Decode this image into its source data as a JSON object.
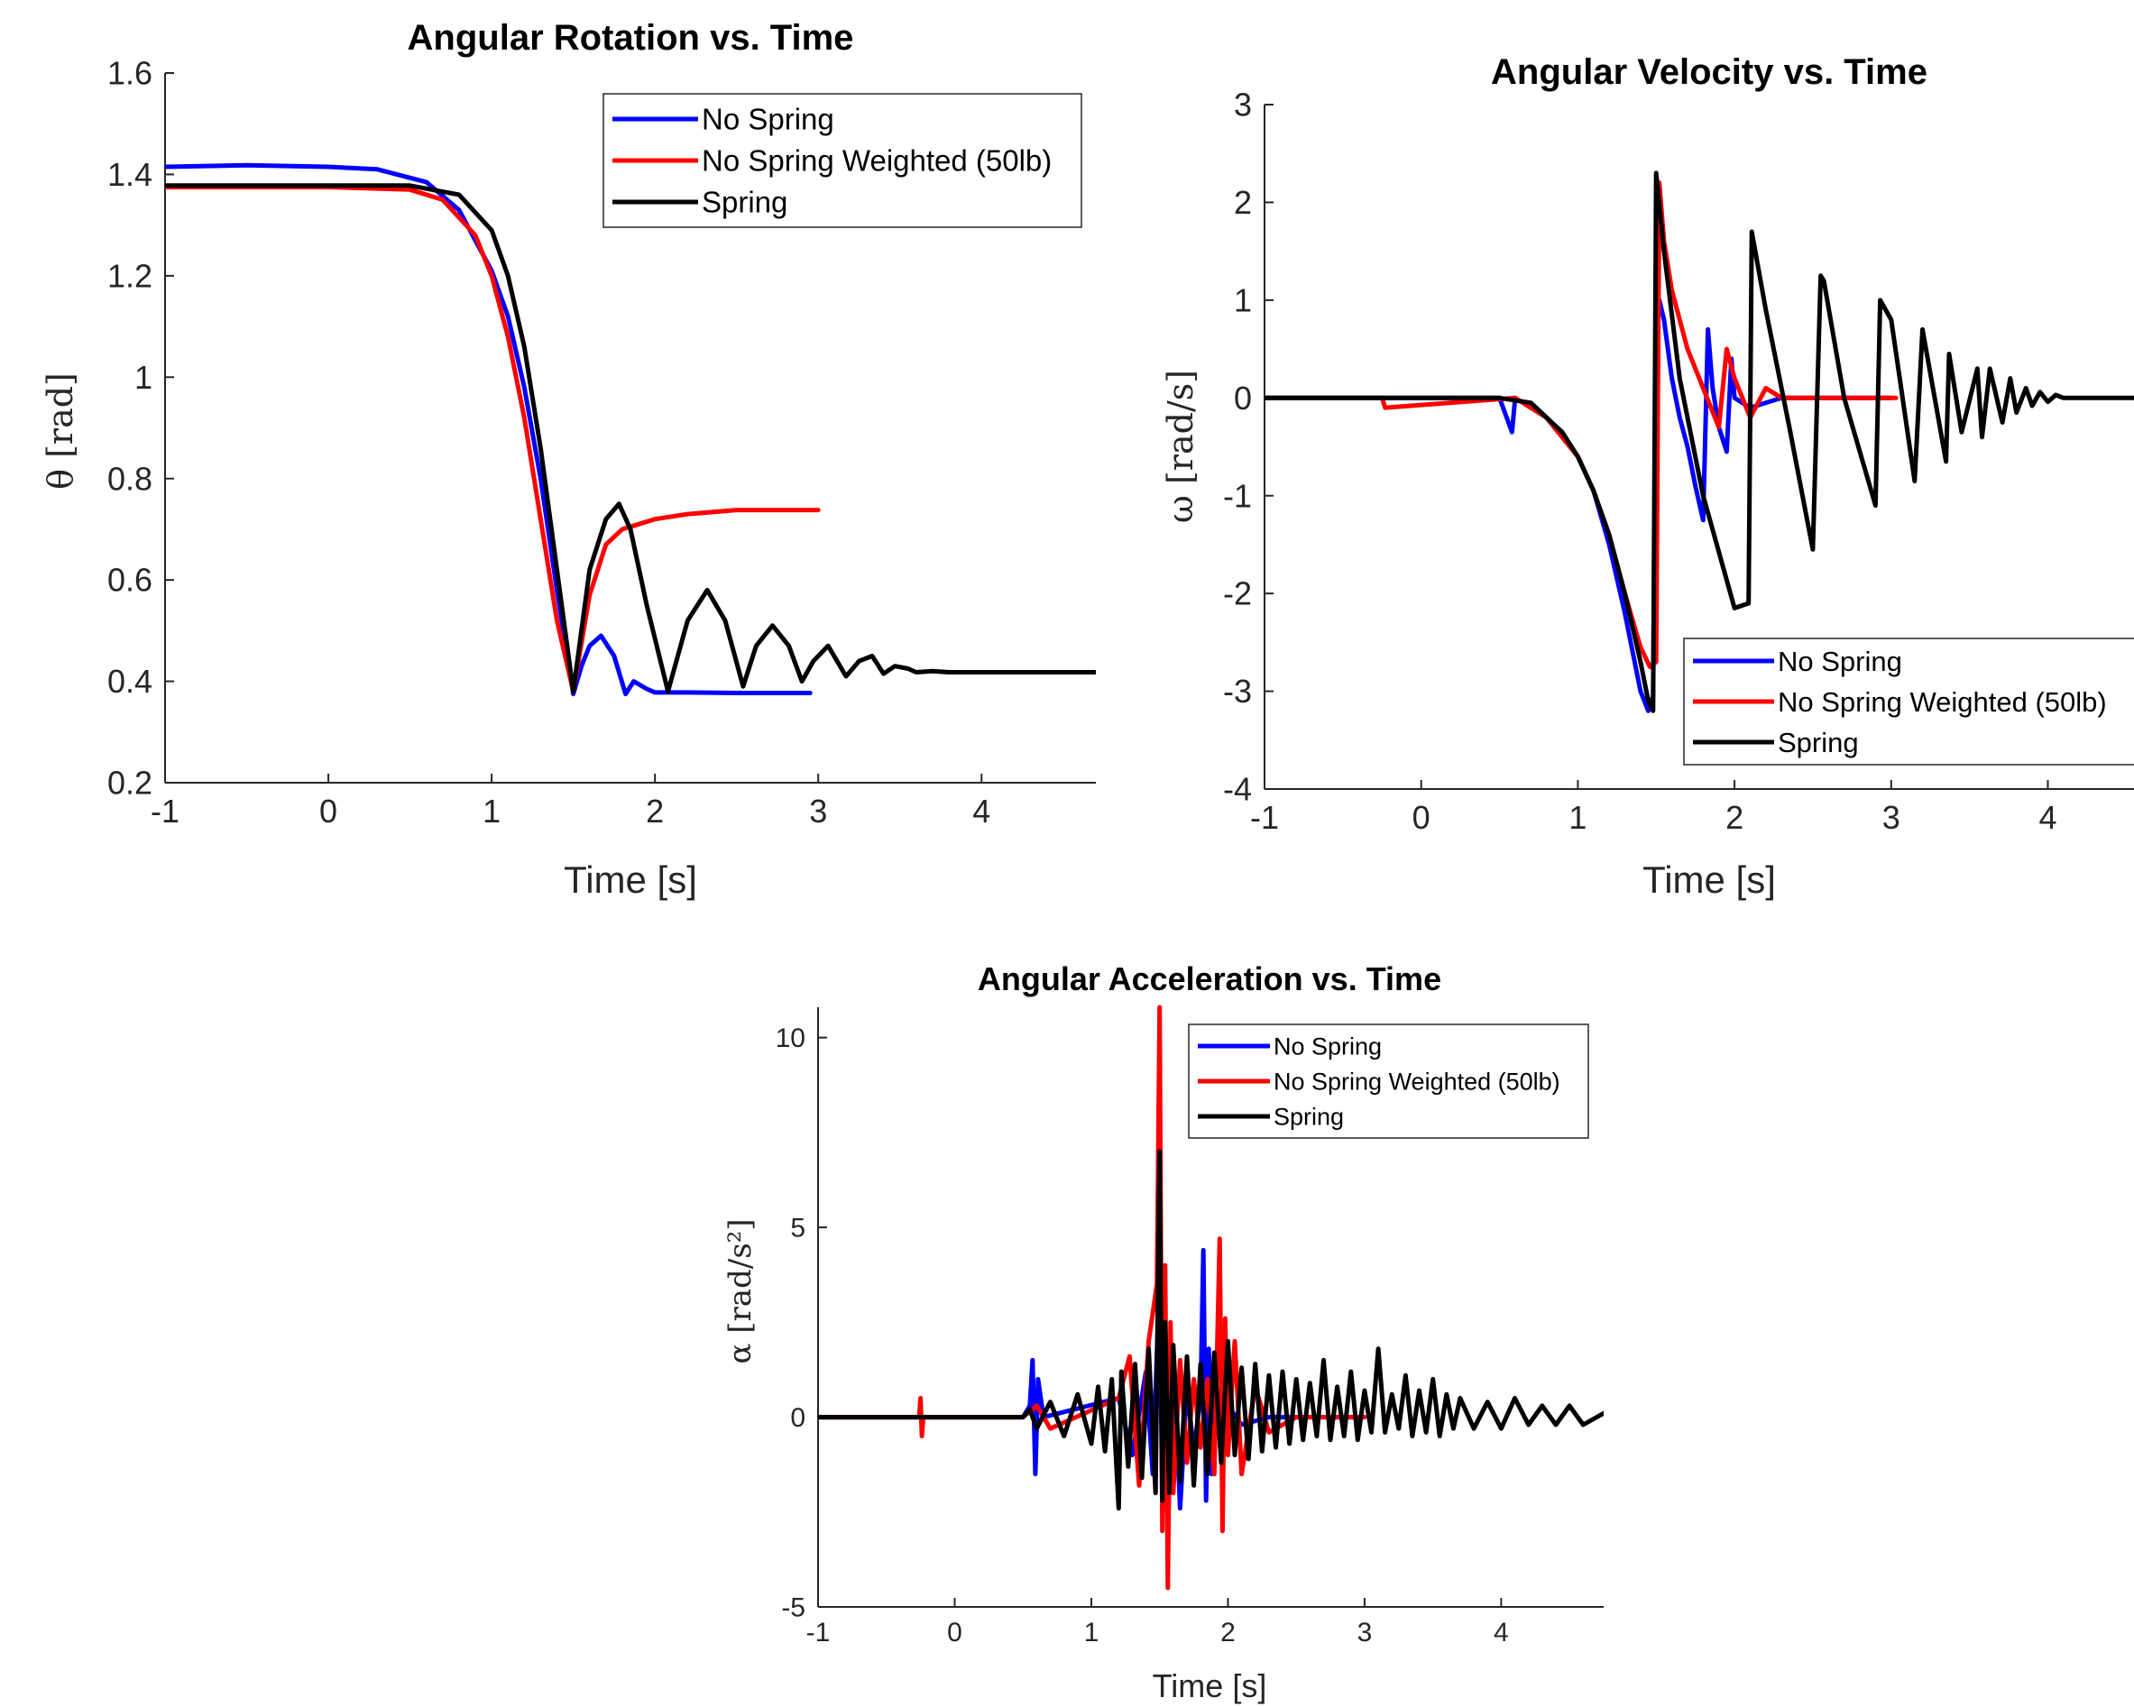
{
  "colors": {
    "no_spring": "#0000ff",
    "no_spring_weighted": "#ff0000",
    "spring": "#000000",
    "axis": "#262626"
  },
  "legend_labels": [
    "No Spring",
    "No Spring Weighted (50lb)",
    "Spring"
  ],
  "chart_data": [
    {
      "type": "line",
      "title": "Angular Rotation vs. Time",
      "xlabel": "Time [s]",
      "ylabel": "θ [rad]",
      "xlim": [
        -1,
        4.7
      ],
      "ylim": [
        0.2,
        1.6
      ],
      "xticks": [
        "-1",
        "0",
        "1",
        "2",
        "3",
        "4"
      ],
      "yticks": [
        "0.2",
        "0.4",
        "0.6",
        "0.8",
        "1",
        "1.2",
        "1.4",
        "1.6"
      ],
      "legend_position": "top-right",
      "series": [
        {
          "name": "No Spring",
          "x": [
            -1,
            -0.5,
            0,
            0.3,
            0.6,
            0.8,
            1.0,
            1.1,
            1.2,
            1.3,
            1.4,
            1.5,
            1.55,
            1.6,
            1.67,
            1.75,
            1.82,
            1.87,
            1.95,
            2.0,
            2.2,
            2.5,
            2.95
          ],
          "y": [
            1.415,
            1.418,
            1.415,
            1.41,
            1.385,
            1.33,
            1.21,
            1.12,
            0.98,
            0.8,
            0.58,
            0.375,
            0.43,
            0.47,
            0.49,
            0.45,
            0.375,
            0.4,
            0.385,
            0.378,
            0.378,
            0.377,
            0.377
          ]
        },
        {
          "name": "No Spring Weighted (50lb)",
          "x": [
            -1,
            0,
            0.5,
            0.7,
            0.9,
            1.0,
            1.1,
            1.2,
            1.3,
            1.4,
            1.5,
            1.6,
            1.7,
            1.8,
            1.9,
            2.0,
            2.2,
            2.5,
            3.0
          ],
          "y": [
            1.375,
            1.375,
            1.37,
            1.35,
            1.28,
            1.2,
            1.08,
            0.92,
            0.72,
            0.52,
            0.38,
            0.57,
            0.67,
            0.7,
            0.71,
            0.72,
            0.73,
            0.738,
            0.738
          ]
        },
        {
          "name": "Spring",
          "x": [
            -1,
            0,
            0.5,
            0.8,
            1.0,
            1.1,
            1.2,
            1.3,
            1.4,
            1.5,
            1.6,
            1.7,
            1.78,
            1.85,
            1.95,
            2.08,
            2.2,
            2.32,
            2.43,
            2.54,
            2.62,
            2.72,
            2.82,
            2.9,
            2.97,
            3.06,
            3.17,
            3.25,
            3.33,
            3.4,
            3.47,
            3.55,
            3.6,
            3.7,
            3.8,
            4.0,
            4.7
          ],
          "y": [
            1.378,
            1.378,
            1.378,
            1.36,
            1.29,
            1.2,
            1.06,
            0.86,
            0.62,
            0.38,
            0.62,
            0.72,
            0.75,
            0.7,
            0.55,
            0.38,
            0.52,
            0.58,
            0.52,
            0.39,
            0.47,
            0.51,
            0.47,
            0.4,
            0.44,
            0.47,
            0.41,
            0.44,
            0.45,
            0.415,
            0.43,
            0.425,
            0.418,
            0.42,
            0.418,
            0.418,
            0.418
          ]
        }
      ]
    },
    {
      "type": "line",
      "title": "Angular Velocity vs. Time",
      "xlabel": "Time [s]",
      "ylabel": "ω [rad/s]",
      "xlim": [
        -1,
        4.55
      ],
      "ylim": [
        -4,
        3
      ],
      "xticks": [
        "-1",
        "0",
        "1",
        "2",
        "3",
        "4"
      ],
      "yticks": [
        "-4",
        "-3",
        "-2",
        "-1",
        "0",
        "1",
        "2",
        "3"
      ],
      "legend_position": "bottom-right",
      "series": [
        {
          "name": "No Spring",
          "x": [
            -1,
            0.5,
            0.58,
            0.6,
            0.8,
            1.0,
            1.1,
            1.2,
            1.3,
            1.4,
            1.45,
            1.48,
            1.5,
            1.52,
            1.55,
            1.6,
            1.65,
            1.7,
            1.75,
            1.8,
            1.83,
            1.86,
            1.9,
            1.95,
            1.98,
            2.0,
            2.1,
            2.3,
            2.5,
            3.0
          ],
          "y": [
            0,
            0,
            -0.35,
            0,
            -0.2,
            -0.6,
            -0.95,
            -1.5,
            -2.2,
            -3.0,
            -3.2,
            -3.05,
            0.5,
            1.0,
            0.8,
            0.2,
            -0.2,
            -0.5,
            -0.9,
            -1.25,
            0.7,
            0.1,
            -0.3,
            -0.55,
            0.4,
            0.0,
            -0.1,
            0,
            0,
            0
          ]
        },
        {
          "name": "No Spring Weighted (50lb)",
          "x": [
            -1,
            -0.25,
            -0.23,
            0.6,
            0.8,
            1.0,
            1.1,
            1.2,
            1.3,
            1.4,
            1.46,
            1.5,
            1.52,
            1.55,
            1.6,
            1.7,
            1.8,
            1.9,
            1.95,
            2.0,
            2.1,
            2.2,
            2.3,
            2.5,
            2.8,
            3.03
          ],
          "y": [
            0,
            0,
            -0.1,
            0,
            -0.2,
            -0.6,
            -0.95,
            -1.4,
            -2.0,
            -2.55,
            -2.75,
            -2.7,
            2.2,
            1.6,
            1.1,
            0.5,
            0.1,
            -0.3,
            0.5,
            0.2,
            -0.2,
            0.1,
            0,
            0,
            0,
            0
          ]
        },
        {
          "name": "Spring",
          "x": [
            -1,
            0.5,
            0.7,
            0.8,
            0.9,
            1.0,
            1.1,
            1.2,
            1.3,
            1.4,
            1.45,
            1.48,
            1.5,
            1.55,
            1.65,
            1.8,
            2.0,
            2.09,
            2.11,
            2.2,
            2.35,
            2.5,
            2.55,
            2.57,
            2.7,
            2.9,
            2.93,
            3.0,
            3.15,
            3.2,
            3.35,
            3.37,
            3.45,
            3.55,
            3.58,
            3.63,
            3.71,
            3.76,
            3.8,
            3.86,
            3.9,
            3.95,
            4.0,
            4.05,
            4.1,
            4.2,
            4.55
          ],
          "y": [
            0,
            0,
            -0.05,
            -0.2,
            -0.35,
            -0.6,
            -0.95,
            -1.4,
            -2.0,
            -2.7,
            -3.1,
            -3.2,
            2.3,
            1.5,
            0.2,
            -1.0,
            -2.15,
            -2.1,
            1.7,
            0.9,
            -0.3,
            -1.55,
            1.25,
            1.2,
            0.0,
            -1.1,
            1.0,
            0.8,
            -0.85,
            0.7,
            -0.65,
            0.45,
            -0.35,
            0.3,
            -0.4,
            0.3,
            -0.25,
            0.2,
            -0.15,
            0.1,
            -0.08,
            0.06,
            -0.04,
            0.03,
            0,
            0,
            0
          ]
        }
      ]
    },
    {
      "type": "line",
      "title": "Angular Acceleration vs. Time",
      "xlabel": "Time [s]",
      "ylabel": "α [rad/s²]",
      "xlim": [
        -1,
        4.75
      ],
      "ylim": [
        -5,
        10.8
      ],
      "xticks": [
        "-1",
        "0",
        "1",
        "2",
        "3",
        "4"
      ],
      "yticks": [
        "-5",
        "0",
        "5",
        "10"
      ],
      "legend_position": "top-right",
      "series": [
        {
          "name": "No Spring",
          "x": [
            -1,
            0.5,
            0.55,
            0.57,
            0.59,
            0.61,
            0.65,
            1.2,
            1.3,
            1.4,
            1.45,
            1.5,
            1.52,
            1.54,
            1.56,
            1.6,
            1.65,
            1.7,
            1.75,
            1.8,
            1.82,
            1.84,
            1.86,
            1.88,
            1.9,
            1.95,
            2.0,
            2.1,
            2.3,
            2.6,
            3.0
          ],
          "y": [
            0,
            0,
            0.3,
            1.5,
            -1.5,
            1.0,
            0,
            0.5,
            -1.0,
            1.2,
            -1.5,
            3.8,
            -2.5,
            3.0,
            -3.0,
            1.8,
            -2.4,
            0.8,
            -0.9,
            0.5,
            4.4,
            -2.2,
            1.8,
            -1.5,
            0.7,
            -0.5,
            0.3,
            -0.2,
            0,
            0,
            0
          ]
        },
        {
          "name": "No Spring Weighted (50lb)",
          "x": [
            -1,
            -0.26,
            -0.25,
            -0.24,
            -0.23,
            0.5,
            0.6,
            0.7,
            1.2,
            1.28,
            1.35,
            1.42,
            1.48,
            1.5,
            1.52,
            1.54,
            1.56,
            1.58,
            1.6,
            1.65,
            1.7,
            1.75,
            1.8,
            1.85,
            1.9,
            1.94,
            1.96,
            1.98,
            2.0,
            2.05,
            2.1,
            2.2,
            2.3,
            2.5,
            3.0
          ],
          "y": [
            0,
            0,
            0.5,
            -0.5,
            0,
            0,
            0.3,
            -0.3,
            0.5,
            1.6,
            -1.8,
            2.0,
            3.5,
            10.8,
            -3.0,
            4.0,
            -4.5,
            2.5,
            -2.0,
            1.5,
            -1.2,
            1.0,
            -0.8,
            1.0,
            -1.5,
            4.7,
            -3.0,
            2.6,
            -1.0,
            2.0,
            -1.5,
            0.8,
            -0.4,
            0,
            0
          ]
        },
        {
          "name": "Spring",
          "x": [
            -1,
            0.5,
            0.55,
            0.6,
            0.7,
            0.8,
            0.9,
            1.0,
            1.05,
            1.1,
            1.15,
            1.2,
            1.22,
            1.27,
            1.32,
            1.37,
            1.42,
            1.47,
            1.5,
            1.52,
            1.54,
            1.57,
            1.6,
            1.65,
            1.7,
            1.75,
            1.8,
            1.85,
            1.9,
            1.95,
            2.0,
            2.05,
            2.1,
            2.15,
            2.2,
            2.25,
            2.3,
            2.35,
            2.4,
            2.45,
            2.5,
            2.55,
            2.6,
            2.65,
            2.7,
            2.75,
            2.8,
            2.85,
            2.9,
            2.95,
            3.0,
            3.05,
            3.1,
            3.15,
            3.2,
            3.25,
            3.3,
            3.35,
            3.4,
            3.45,
            3.5,
            3.55,
            3.6,
            3.65,
            3.7,
            3.8,
            3.9,
            4.0,
            4.1,
            4.2,
            4.3,
            4.4,
            4.5,
            4.6,
            4.75
          ],
          "y": [
            0,
            0,
            0.2,
            -0.3,
            0.4,
            -0.5,
            0.6,
            -0.7,
            0.8,
            -0.9,
            1.0,
            -2.4,
            1.2,
            -1.3,
            1.4,
            -1.6,
            1.8,
            -2.0,
            7.0,
            -2.2,
            2.5,
            -2.0,
            1.9,
            -1.7,
            1.6,
            -1.8,
            1.4,
            -1.5,
            1.7,
            -1.2,
            2.0,
            -1.0,
            1.3,
            -1.1,
            1.4,
            -0.9,
            1.1,
            -0.8,
            1.2,
            -0.7,
            1.0,
            -0.6,
            0.9,
            -0.5,
            1.5,
            -0.6,
            0.8,
            -0.5,
            1.2,
            -0.6,
            0.7,
            -0.4,
            1.8,
            -0.4,
            0.6,
            -0.3,
            1.1,
            -0.5,
            0.7,
            -0.4,
            1.0,
            -0.5,
            0.6,
            -0.3,
            0.5,
            -0.3,
            0.4,
            -0.3,
            0.5,
            -0.2,
            0.3,
            -0.2,
            0.3,
            -0.2,
            0.1
          ]
        }
      ]
    }
  ]
}
